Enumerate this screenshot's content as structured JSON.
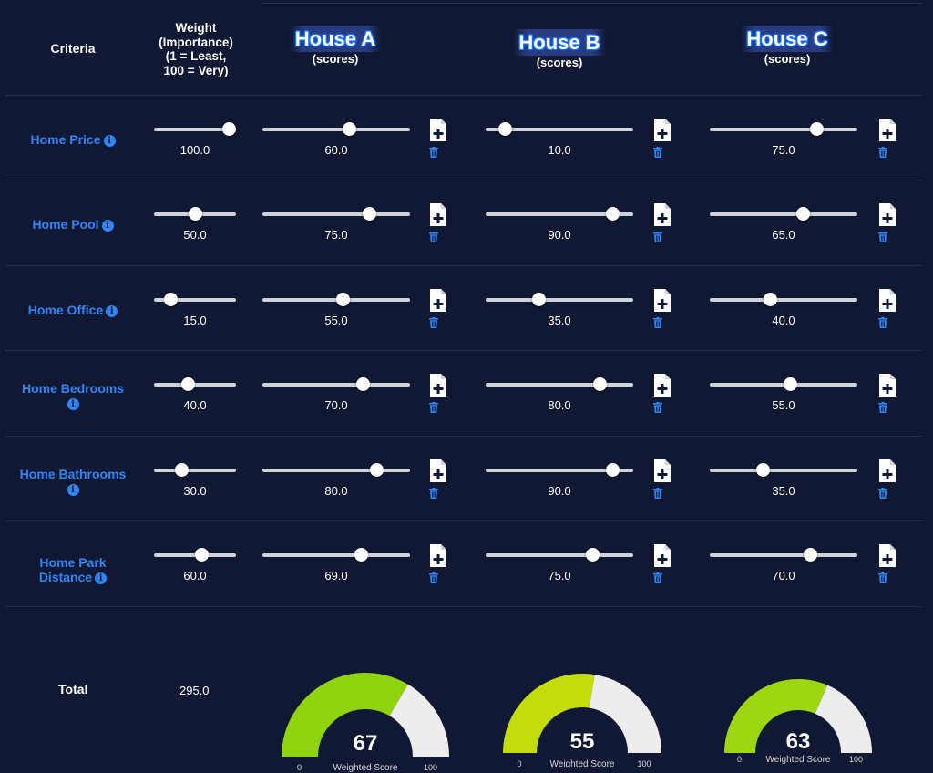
{
  "header": {
    "criteria": "Criteria",
    "weight_lines": [
      "Weight",
      "(Importance)",
      "(1 = Least,",
      "100 = Very)"
    ],
    "houses": [
      {
        "name": "House A",
        "sub": "(scores)"
      },
      {
        "name": "House B",
        "sub": "(scores)"
      },
      {
        "name": "House C",
        "sub": "(scores)"
      }
    ]
  },
  "slider_range": [
    1,
    100
  ],
  "criteria": [
    {
      "label_lines": [
        "Home Price"
      ],
      "weight": "100.0",
      "scores": [
        "60.0",
        "10.0",
        "75.0"
      ]
    },
    {
      "label_lines": [
        "Home Pool"
      ],
      "weight": "50.0",
      "scores": [
        "75.0",
        "90.0",
        "65.0"
      ]
    },
    {
      "label_lines": [
        "Home Office"
      ],
      "weight": "15.0",
      "scores": [
        "55.0",
        "35.0",
        "40.0"
      ]
    },
    {
      "label_lines": [
        "Home Bedrooms"
      ],
      "weight": "40.0",
      "scores": [
        "70.0",
        "80.0",
        "55.0"
      ]
    },
    {
      "label_lines": [
        "Home Bathrooms"
      ],
      "weight": "30.0",
      "scores": [
        "80.0",
        "90.0",
        "35.0"
      ]
    },
    {
      "label_lines": [
        "Home Park",
        "Distance"
      ],
      "weight": "60.0",
      "scores": [
        "69.0",
        "75.0",
        "70.0"
      ]
    }
  ],
  "info_icon": "i",
  "icons": {
    "add": "file-plus-icon",
    "delete": "trash-icon",
    "info": "info-icon"
  },
  "total": {
    "label": "Total",
    "value": "295.0"
  },
  "gauges": [
    {
      "value": "67",
      "caption": "Weighted Score",
      "min": "0",
      "max": "100",
      "color": "#8fd40e"
    },
    {
      "value": "55",
      "caption": "Weighted Score",
      "min": "0",
      "max": "100",
      "color": "#c3dc0c"
    },
    {
      "value": "63",
      "caption": "Weighted Score",
      "min": "0",
      "max": "100",
      "color": "#9dd711"
    }
  ],
  "colors": {
    "background": "#111833",
    "accent": "#2e86f5",
    "track": "#cfd2d6",
    "gauge_bg": "#ededed"
  }
}
